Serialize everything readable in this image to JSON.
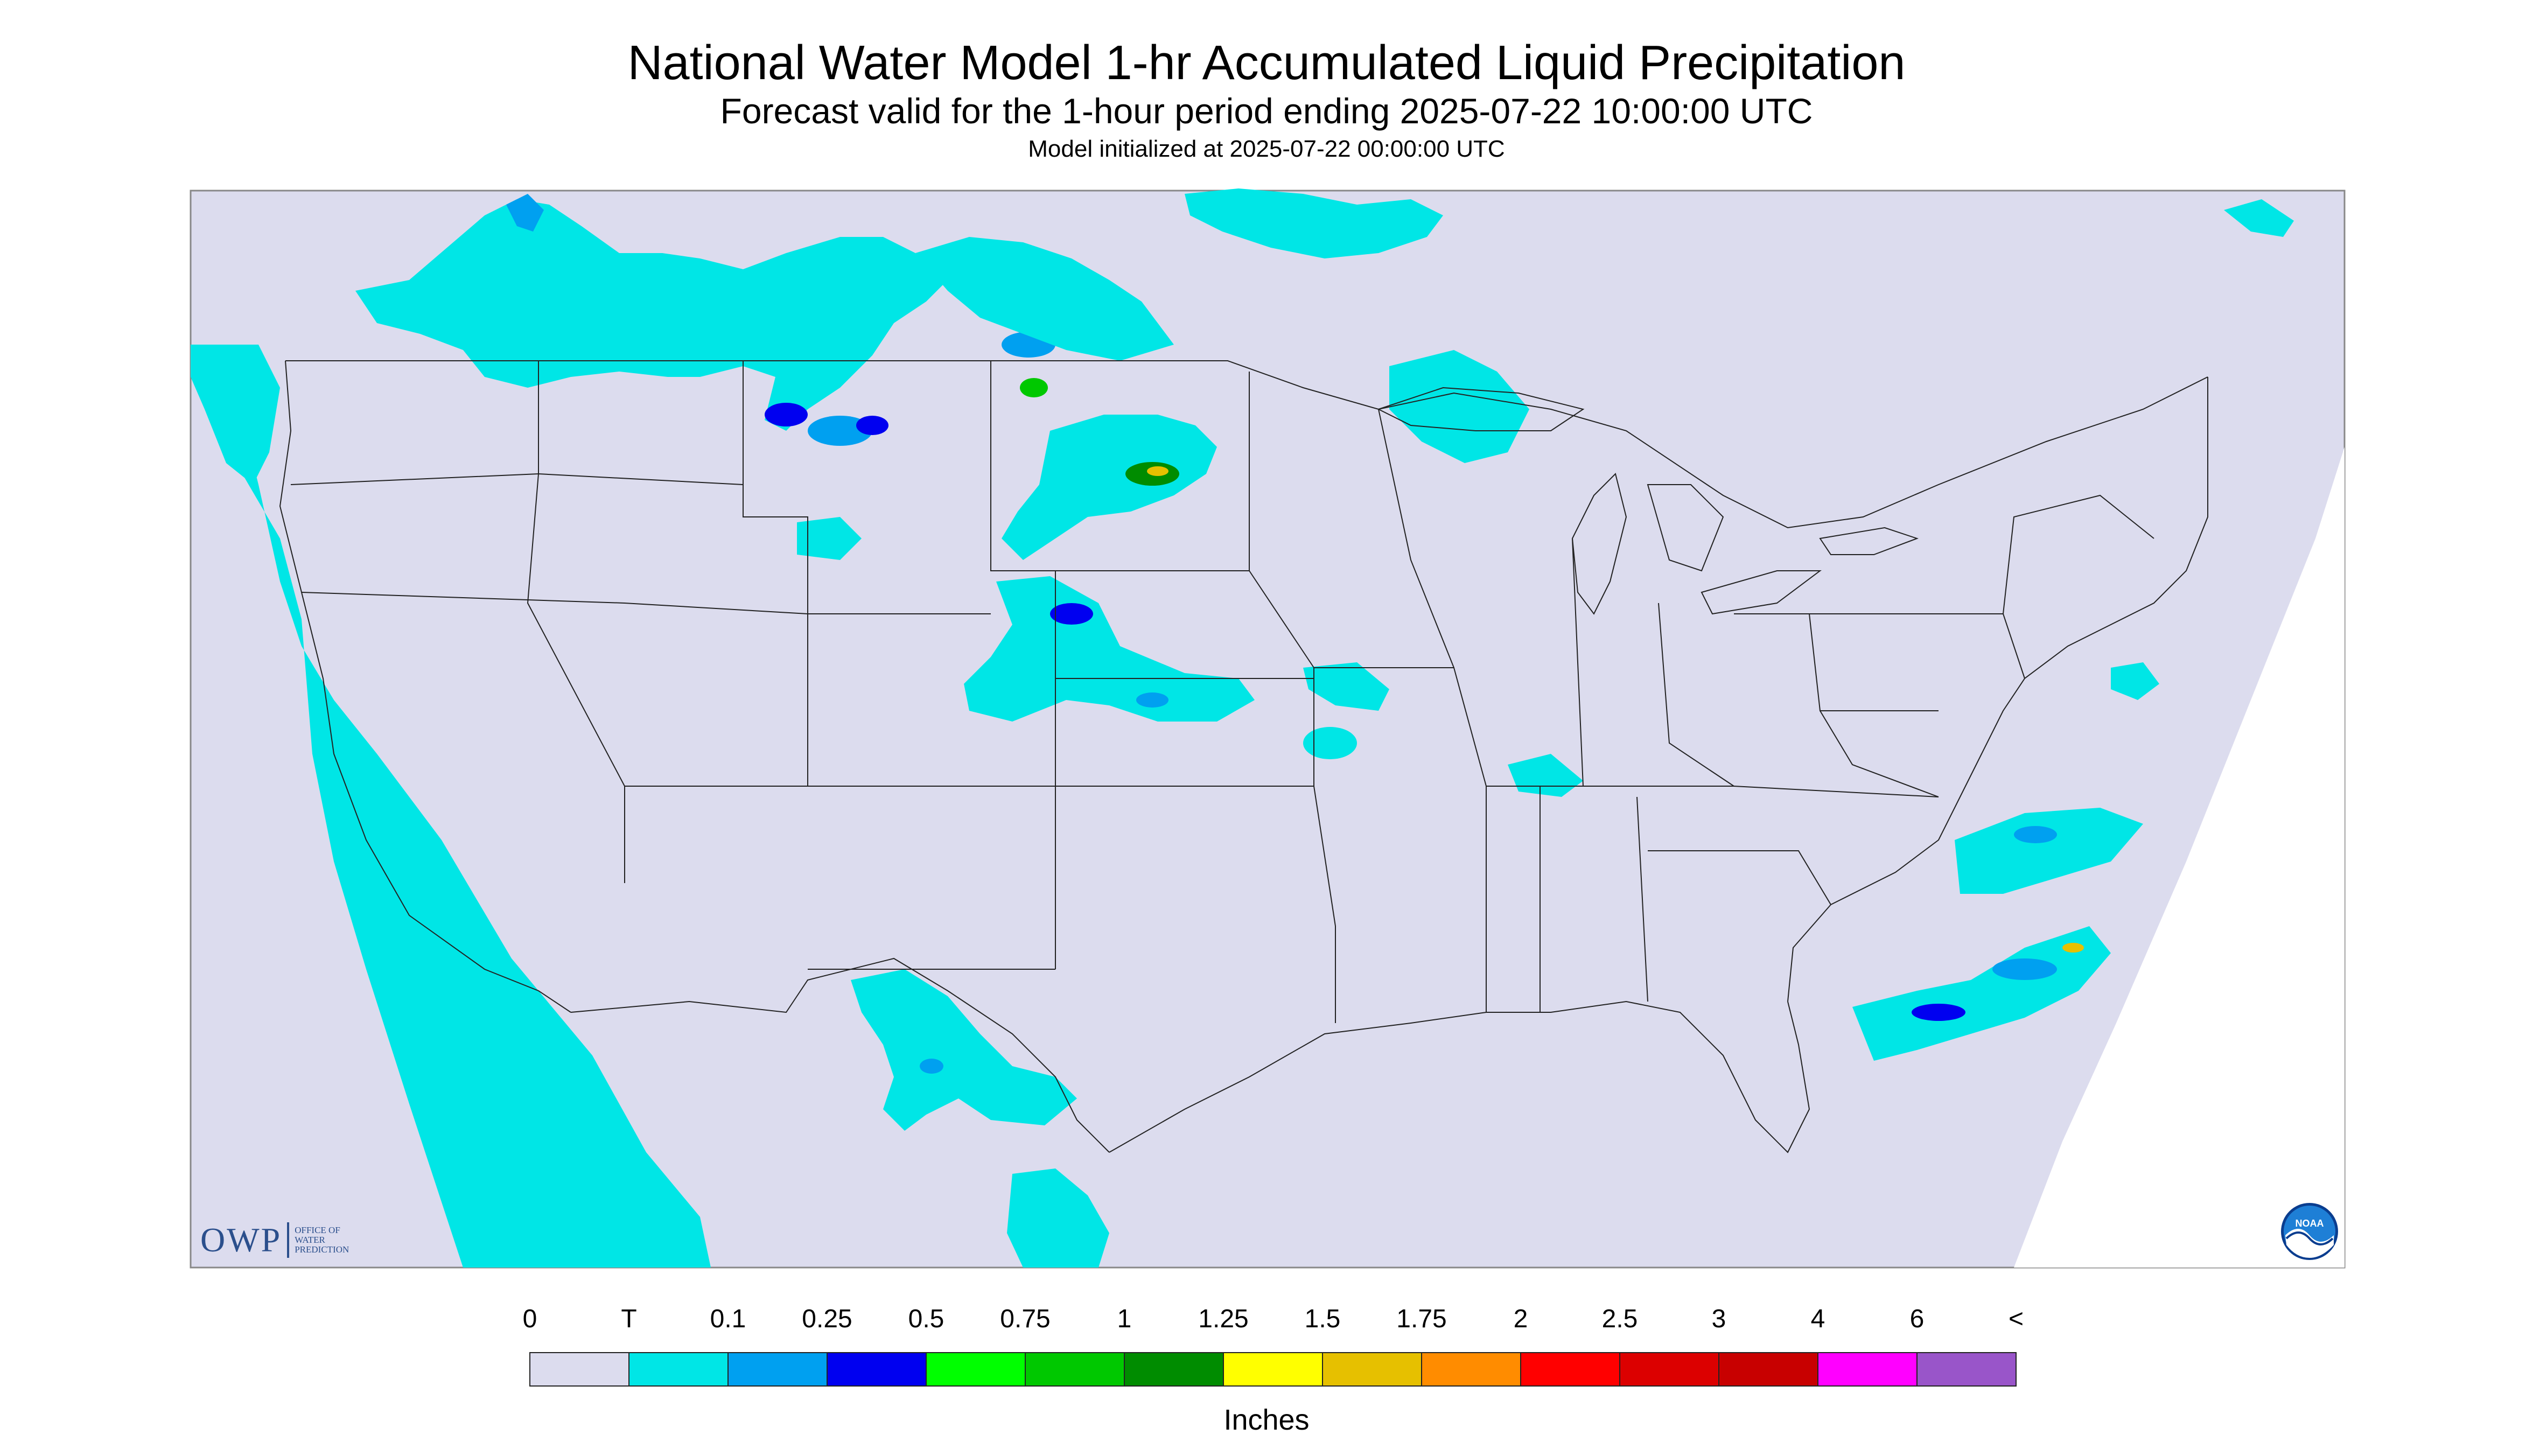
{
  "title": "National Water Model 1-hr Accumulated Liquid Precipitation",
  "subtitle": "Forecast valid for the 1-hour period ending 2025-07-22 10:00:00 UTC",
  "init_text": "Model initialized at 2025-07-22 00:00:00 UTC",
  "logos": {
    "owp_mark": "OWP",
    "owp_lines": [
      "OFFICE OF",
      "WATER",
      "PREDICTION"
    ],
    "noaa": "NOAA"
  },
  "colors": {
    "background_precip_zero": "#dcdcee",
    "map_border": "#888888",
    "outside": "#ffffff"
  },
  "colorbar": {
    "title": "Inches",
    "labels": [
      "0",
      "T",
      "0.1",
      "0.25",
      "0.5",
      "0.75",
      "1",
      "1.25",
      "1.5",
      "1.75",
      "2",
      "2.5",
      "3",
      "4",
      "6",
      "<"
    ],
    "colors": [
      "#dcdcee",
      "#00e6e6",
      "#00a0f0",
      "#0000f0",
      "#00ff00",
      "#00c800",
      "#008c00",
      "#ffff00",
      "#e6c000",
      "#ff8c00",
      "#ff0000",
      "#dc0000",
      "#c80000",
      "#ff00ff",
      "#9955c9"
    ]
  }
}
